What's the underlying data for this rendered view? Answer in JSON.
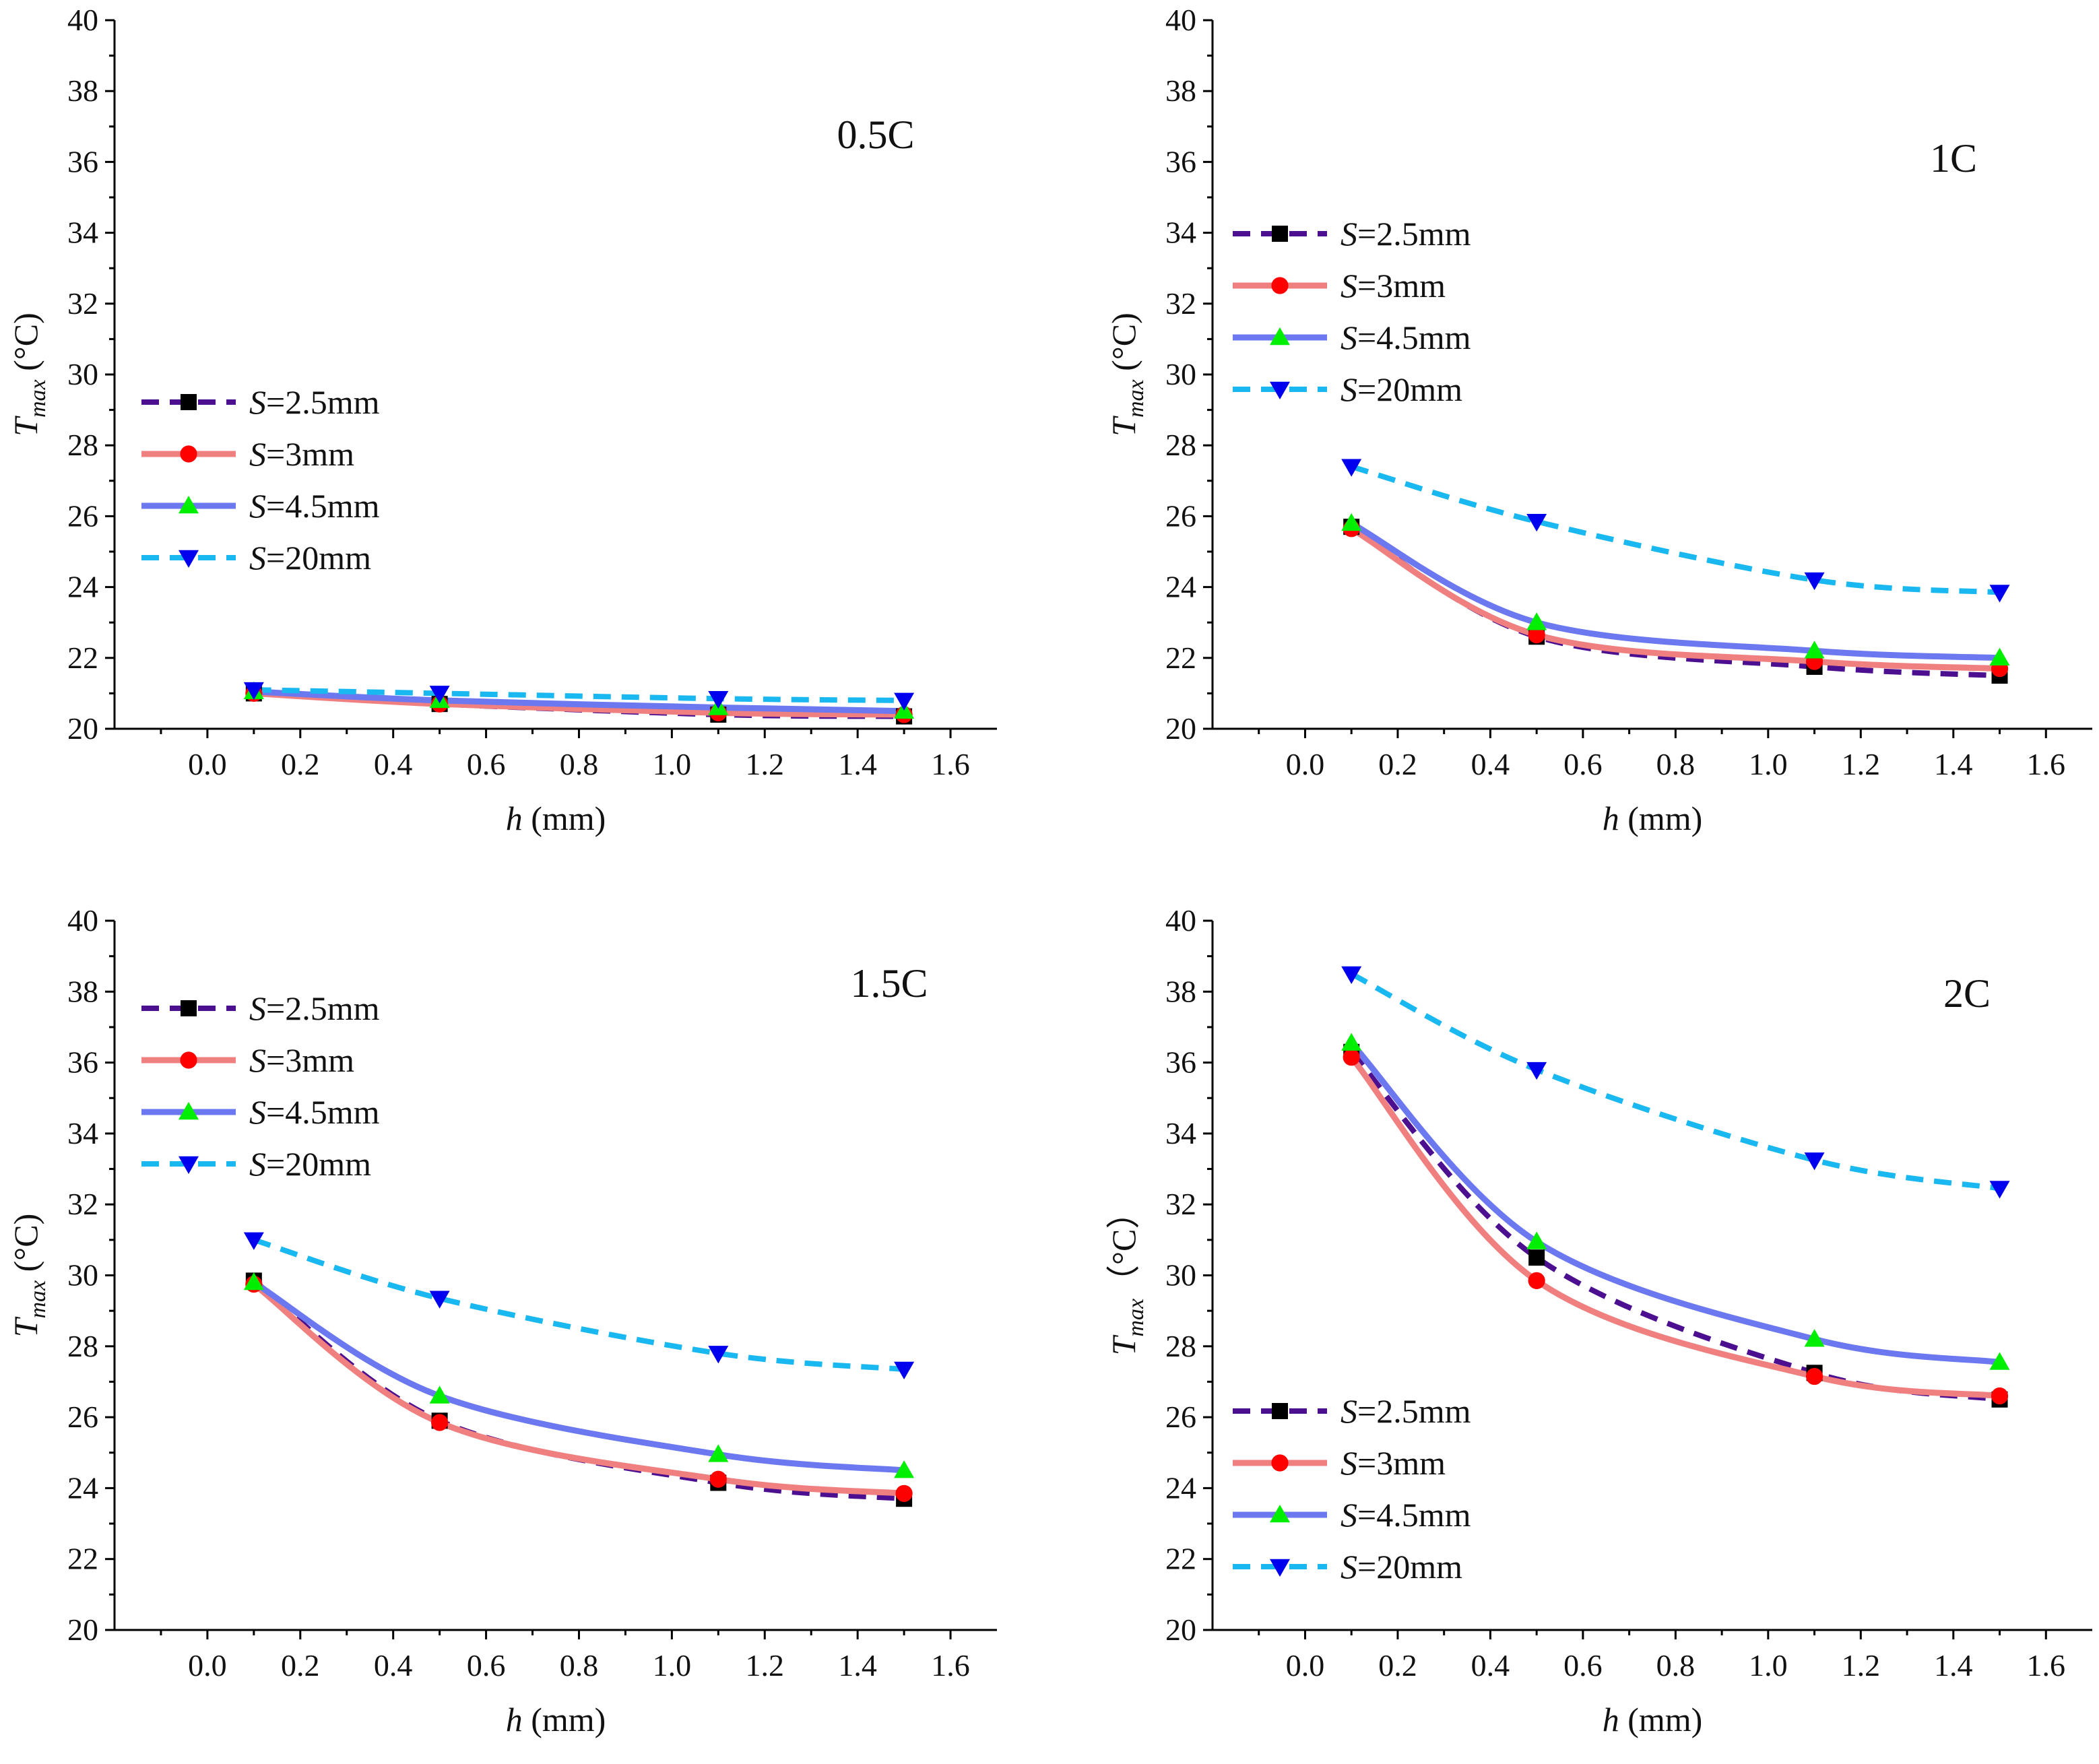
{
  "chart_data": [
    {
      "type": "line",
      "title": "0.5C",
      "xlabel": "h",
      "xlabel_unit": " (mm)",
      "ylabel_main": "T",
      "ylabel_sub": "max",
      "ylabel_unit": " (°C)",
      "xlim": [
        -0.2,
        1.7
      ],
      "ylim": [
        20,
        40
      ],
      "xticks": [
        "0.0",
        "0.2",
        "0.4",
        "0.6",
        "0.8",
        "1.0",
        "1.2",
        "1.4",
        "1.6"
      ],
      "yticks": [
        "20",
        "22",
        "24",
        "26",
        "28",
        "30",
        "32",
        "34",
        "36",
        "38",
        "40"
      ],
      "legend_position": "middle-left",
      "x": [
        0.1,
        0.5,
        1.1,
        1.5
      ],
      "series": [
        {
          "name": "S=2.5mm",
          "label_var": "S",
          "label_rest": "=2.5mm",
          "values": [
            21.0,
            20.7,
            20.4,
            20.35
          ],
          "line_color": "#4b0f8f",
          "marker_color": "#000000",
          "marker": "square",
          "dash": "dash"
        },
        {
          "name": "S=3mm",
          "label_var": "S",
          "label_rest": "=3mm",
          "values": [
            21.0,
            20.7,
            20.45,
            20.4
          ],
          "line_color": "#f08080",
          "marker_color": "#ff0000",
          "marker": "circle",
          "dash": "solid"
        },
        {
          "name": "S=4.5mm",
          "label_var": "S",
          "label_rest": "=4.5mm",
          "values": [
            21.05,
            20.8,
            20.6,
            20.5
          ],
          "line_color": "#6b78f0",
          "marker_color": "#00ee00",
          "marker": "triangle-up",
          "dash": "solid"
        },
        {
          "name": "S=20mm",
          "label_var": "S",
          "label_rest": "=20mm",
          "values": [
            21.1,
            21.0,
            20.85,
            20.8
          ],
          "line_color": "#1ab8f0",
          "marker_color": "#0000ee",
          "marker": "triangle-down",
          "dash": "dash"
        }
      ]
    },
    {
      "type": "line",
      "title": "1C",
      "xlabel": "h",
      "xlabel_unit": " (mm)",
      "ylabel_main": "T",
      "ylabel_sub": "max",
      "ylabel_unit": " (°C)",
      "xlim": [
        -0.2,
        1.7
      ],
      "ylim": [
        20,
        40
      ],
      "xticks": [
        "0.0",
        "0.2",
        "0.4",
        "0.6",
        "0.8",
        "1.0",
        "1.2",
        "1.4",
        "1.6"
      ],
      "yticks": [
        "20",
        "22",
        "24",
        "26",
        "28",
        "30",
        "32",
        "34",
        "36",
        "38",
        "40"
      ],
      "legend_position": "upper-left",
      "x": [
        0.1,
        0.5,
        1.1,
        1.5
      ],
      "series": [
        {
          "name": "S=2.5mm",
          "label_var": "S",
          "label_rest": "=2.5mm",
          "values": [
            25.7,
            22.6,
            21.75,
            21.5
          ],
          "line_color": "#4b0f8f",
          "marker_color": "#000000",
          "marker": "square",
          "dash": "dash"
        },
        {
          "name": "S=3mm",
          "label_var": "S",
          "label_rest": "=3mm",
          "values": [
            25.65,
            22.65,
            21.9,
            21.7
          ],
          "line_color": "#f08080",
          "marker_color": "#ff0000",
          "marker": "circle",
          "dash": "solid"
        },
        {
          "name": "S=4.5mm",
          "label_var": "S",
          "label_rest": "=4.5mm",
          "values": [
            25.8,
            23.0,
            22.2,
            22.0
          ],
          "line_color": "#6b78f0",
          "marker_color": "#00ee00",
          "marker": "triangle-up",
          "dash": "solid"
        },
        {
          "name": "S=20mm",
          "label_var": "S",
          "label_rest": "=20mm",
          "values": [
            27.4,
            25.85,
            24.2,
            23.85
          ],
          "line_color": "#1ab8f0",
          "marker_color": "#0000ee",
          "marker": "triangle-down",
          "dash": "dash"
        }
      ]
    },
    {
      "type": "line",
      "title": "1.5C",
      "xlabel": "h",
      "xlabel_unit": " (mm)",
      "ylabel_main": "T",
      "ylabel_sub": "max",
      "ylabel_unit": " (°C)",
      "xlim": [
        -0.2,
        1.7
      ],
      "ylim": [
        20,
        40
      ],
      "xticks": [
        "0.0",
        "0.2",
        "0.4",
        "0.6",
        "0.8",
        "1.0",
        "1.2",
        "1.4",
        "1.6"
      ],
      "yticks": [
        "20",
        "22",
        "24",
        "26",
        "28",
        "30",
        "32",
        "34",
        "36",
        "38",
        "40"
      ],
      "legend_position": "upper-left",
      "x": [
        0.1,
        0.5,
        1.1,
        1.5
      ],
      "series": [
        {
          "name": "S=2.5mm",
          "label_var": "S",
          "label_rest": "=2.5mm",
          "values": [
            29.85,
            25.9,
            24.15,
            23.7
          ],
          "line_color": "#4b0f8f",
          "marker_color": "#000000",
          "marker": "square",
          "dash": "dash"
        },
        {
          "name": "S=3mm",
          "label_var": "S",
          "label_rest": "=3mm",
          "values": [
            29.75,
            25.85,
            24.25,
            23.85
          ],
          "line_color": "#f08080",
          "marker_color": "#ff0000",
          "marker": "circle",
          "dash": "solid"
        },
        {
          "name": "S=4.5mm",
          "label_var": "S",
          "label_rest": "=4.5mm",
          "values": [
            29.8,
            26.6,
            24.95,
            24.5
          ],
          "line_color": "#6b78f0",
          "marker_color": "#00ee00",
          "marker": "triangle-up",
          "dash": "solid"
        },
        {
          "name": "S=20mm",
          "label_var": "S",
          "label_rest": "=20mm",
          "values": [
            31.0,
            29.35,
            27.8,
            27.35
          ],
          "line_color": "#1ab8f0",
          "marker_color": "#0000ee",
          "marker": "triangle-down",
          "dash": "dash"
        }
      ]
    },
    {
      "type": "line",
      "title": "2C",
      "xlabel": "h",
      "xlabel_unit": " (mm)",
      "ylabel_main": "T",
      "ylabel_sub": "max",
      "ylabel_unit": "（°C）",
      "xlim": [
        -0.2,
        1.7
      ],
      "ylim": [
        20,
        40
      ],
      "xticks": [
        "0.0",
        "0.2",
        "0.4",
        "0.6",
        "0.8",
        "1.0",
        "1.2",
        "1.4",
        "1.6"
      ],
      "yticks": [
        "20",
        "22",
        "24",
        "26",
        "28",
        "30",
        "32",
        "34",
        "36",
        "38",
        "40"
      ],
      "legend_position": "lower-left",
      "x": [
        0.1,
        0.5,
        1.1,
        1.5
      ],
      "series": [
        {
          "name": "S=2.5mm",
          "label_var": "S",
          "label_rest": "=2.5mm",
          "values": [
            36.3,
            30.5,
            27.25,
            26.5
          ],
          "line_color": "#4b0f8f",
          "marker_color": "#000000",
          "marker": "square",
          "dash": "dash"
        },
        {
          "name": "S=3mm",
          "label_var": "S",
          "label_rest": "=3mm",
          "values": [
            36.15,
            29.85,
            27.15,
            26.6
          ],
          "line_color": "#f08080",
          "marker_color": "#ff0000",
          "marker": "circle",
          "dash": "solid"
        },
        {
          "name": "S=4.5mm",
          "label_var": "S",
          "label_rest": "=4.5mm",
          "values": [
            36.55,
            30.95,
            28.2,
            27.55
          ],
          "line_color": "#6b78f0",
          "marker_color": "#00ee00",
          "marker": "triangle-up",
          "dash": "solid"
        },
        {
          "name": "S=20mm",
          "label_var": "S",
          "label_rest": "=20mm",
          "values": [
            38.5,
            35.8,
            33.25,
            32.45
          ],
          "line_color": "#1ab8f0",
          "marker_color": "#0000ee",
          "marker": "triangle-down",
          "dash": "dash"
        }
      ]
    }
  ]
}
